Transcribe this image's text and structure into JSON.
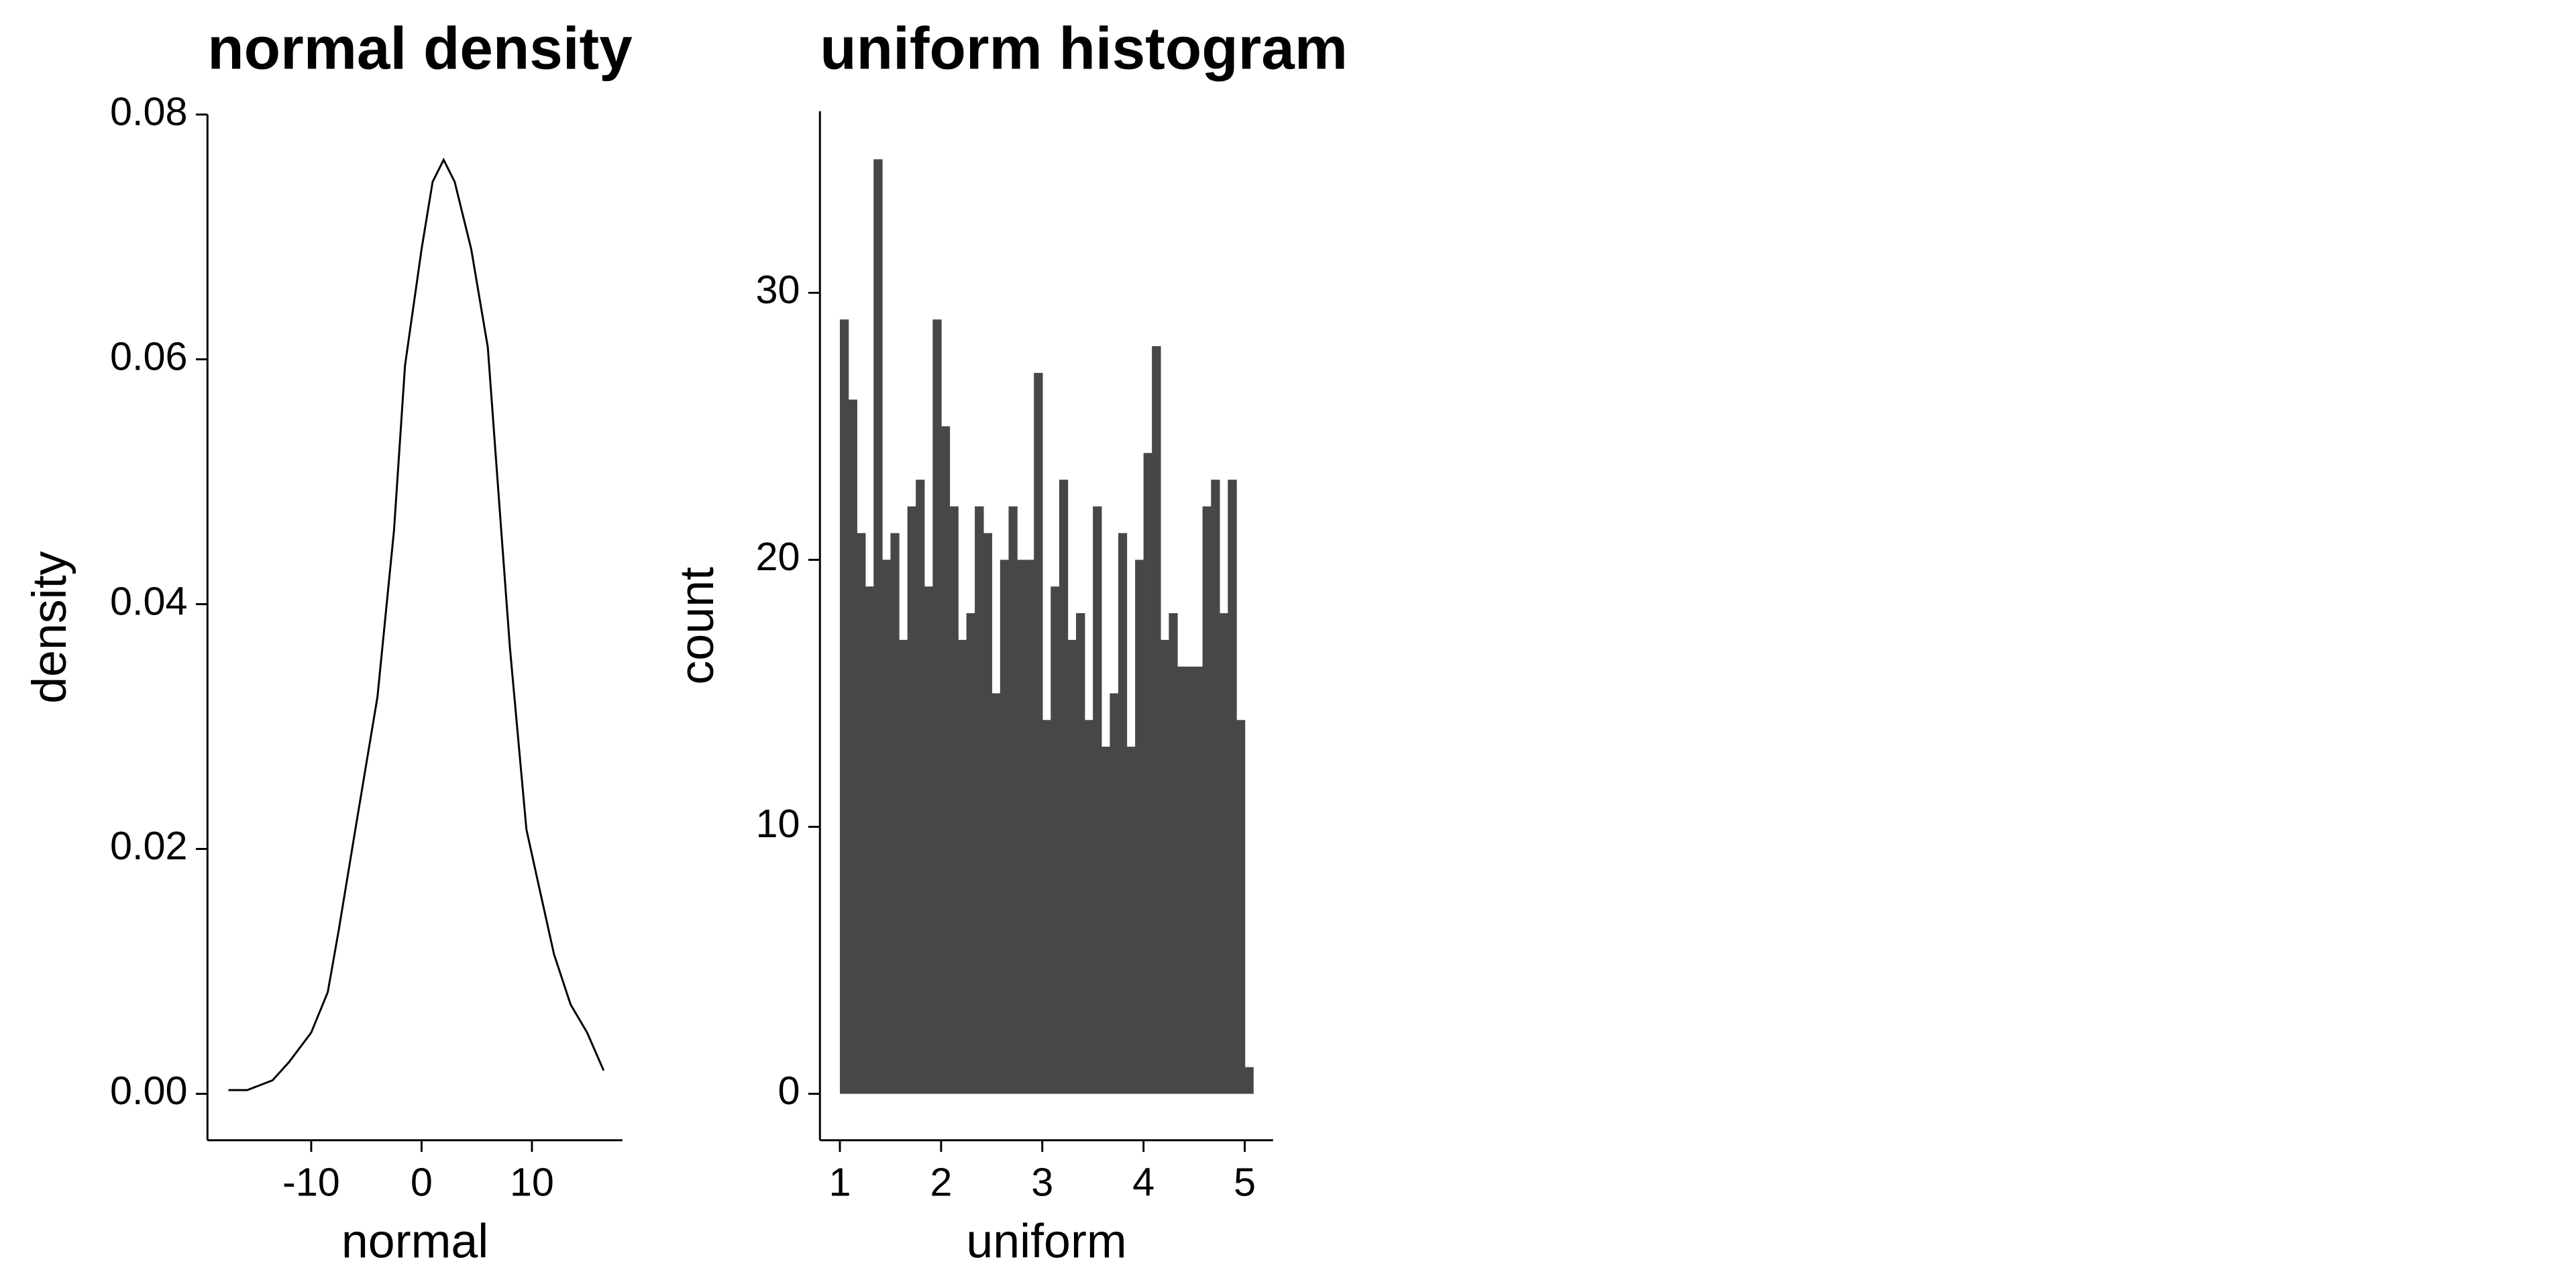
{
  "chart_data": [
    {
      "type": "line",
      "title": "normal density",
      "x_label": "normal",
      "y_label": "density",
      "color": "#000000",
      "x": [
        -17.5,
        -15.8,
        -13.5,
        -12,
        -10,
        -8.5,
        -7.5,
        -6,
        -4,
        -2.5,
        -1.5,
        0,
        1,
        2,
        3,
        4.5,
        6,
        7,
        8,
        9.5,
        10.5,
        12,
        13.5,
        15,
        16.5
      ],
      "values": [
        0.0003,
        0.0003,
        0.0011,
        0.0026,
        0.005,
        0.0083,
        0.0134,
        0.0216,
        0.0324,
        0.046,
        0.0595,
        0.069,
        0.0745,
        0.0763,
        0.0745,
        0.069,
        0.061,
        0.0487,
        0.0365,
        0.0216,
        0.0175,
        0.0114,
        0.0073,
        0.005,
        0.0019
      ],
      "xlim": [
        -19.4,
        18.2
      ],
      "xticks": [
        -10,
        0,
        10
      ],
      "ylim": [
        -0.0038,
        0.08
      ],
      "yticks": [
        {
          "value": 0,
          "label": "0.00"
        },
        {
          "value": 0.02,
          "label": "0.02"
        },
        {
          "value": 0.04,
          "label": "0.04"
        },
        {
          "value": 0.06,
          "label": "0.06"
        },
        {
          "value": 0.08,
          "label": "0.08"
        }
      ],
      "grid": false
    },
    {
      "type": "histogram",
      "title": "uniform histogram",
      "x_label": "uniform",
      "y_label": "count",
      "color": "#474747",
      "bins": [
        1,
        1.083,
        1.167,
        1.25,
        1.333,
        1.417,
        1.5,
        1.583,
        1.667,
        1.75,
        1.833,
        1.917,
        2,
        2.083,
        2.167,
        2.25,
        2.333,
        2.417,
        2.5,
        2.583,
        2.667,
        2.75,
        2.833,
        2.917,
        3,
        3.083,
        3.167,
        3.25,
        3.333,
        3.417,
        3.5,
        3.583,
        3.667,
        3.75,
        3.833,
        3.917,
        4,
        4.083,
        4.167,
        4.25,
        4.333,
        4.417,
        4.5,
        4.583,
        4.667,
        4.75,
        4.833,
        4.917,
        5,
        5.083
      ],
      "values": [
        29,
        26,
        21,
        19,
        35,
        20,
        21,
        17,
        22,
        23,
        19,
        29,
        25,
        22,
        17,
        18,
        22,
        21,
        15,
        20,
        22,
        20,
        20,
        27,
        14,
        19,
        23,
        17,
        18,
        14,
        22,
        13,
        15,
        21,
        13,
        20,
        24,
        28,
        17,
        18,
        16,
        16,
        16,
        22,
        23,
        18,
        23,
        14,
        1
      ],
      "xlim": [
        0.803,
        5.28
      ],
      "xticks": [
        1,
        2,
        3,
        4,
        5
      ],
      "ylim": [
        -1.74,
        36.8
      ],
      "yticks": [
        0,
        10,
        20,
        30
      ],
      "grid": false
    }
  ]
}
